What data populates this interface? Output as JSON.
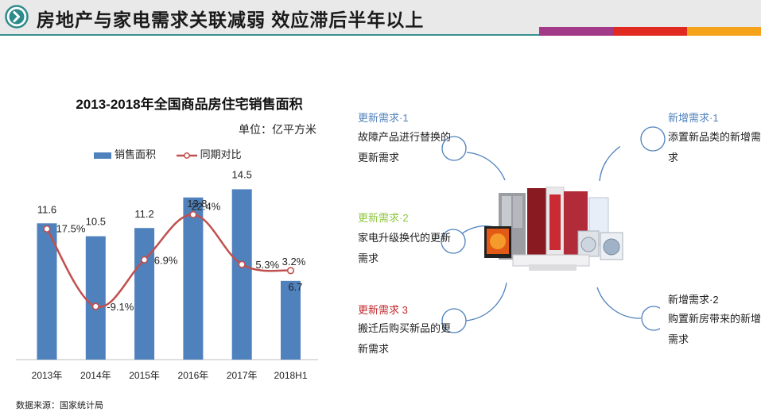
{
  "header": {
    "title": "房地产与家电需求关联减弱  效应滞后半年以上",
    "accent_colors": [
      "#a23a88",
      "#e02a1f",
      "#f5a31b"
    ],
    "icon": "chevron-right-circle-icon"
  },
  "chart": {
    "unit": "单位：亿平方米",
    "legend": {
      "bar": "销售面积",
      "line": "同期对比"
    }
  },
  "chart_data": {
    "type": "bar",
    "title": "2013-2018年全国商品房住宅销售面积",
    "categories": [
      "2013年",
      "2014年",
      "2015年",
      "2016年",
      "2017年",
      "2018H1"
    ],
    "series": [
      {
        "name": "销售面积",
        "type": "bar",
        "color": "#4f81bd",
        "values": [
          11.6,
          10.5,
          11.2,
          13.8,
          14.5,
          6.7
        ],
        "labels": [
          "11.6",
          "10.5",
          "11.2",
          "13.8",
          "14.5",
          "6.7"
        ]
      },
      {
        "name": "同期对比",
        "type": "line",
        "color": "#c0504d",
        "values": [
          17.5,
          -9.1,
          6.9,
          22.4,
          5.3,
          3.2
        ],
        "labels": [
          "17.5%",
          "-9.1%",
          "6.9%",
          "22.4%",
          "5.3%",
          "3.2%"
        ]
      }
    ],
    "legend_position": "top",
    "grid": false
  },
  "source": "数据来源：国家统计局",
  "needs": [
    {
      "title": "更新需求·1",
      "desc": "故障产品进行替换的更新需求",
      "color": "#4f81bd"
    },
    {
      "title": "更新需求·2",
      "desc": "家电升级换代的更新需求",
      "color": "#8dc63f"
    },
    {
      "title": "更新需求 3",
      "desc": "搬迁后购买新品的更新需求",
      "color": "#c0282d"
    },
    {
      "title": "新增需求·1",
      "desc": "添置新品类的新增需求",
      "color": "#4f81bd"
    },
    {
      "title": "新增需求·2",
      "desc": "购置新房带来的新增需求",
      "color": "#222222"
    }
  ]
}
